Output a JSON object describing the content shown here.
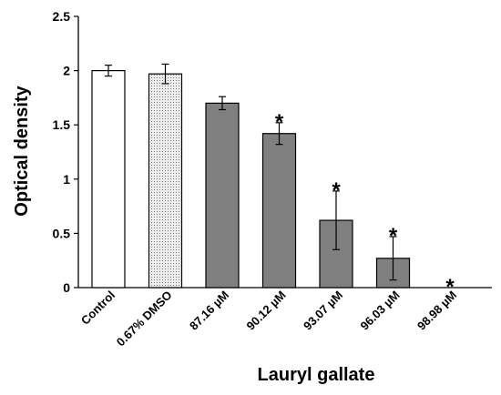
{
  "chart_data": {
    "type": "bar",
    "xlabel": "Lauryl gallate",
    "ylabel": "Optical density",
    "ylim": [
      0,
      2.5
    ],
    "yticks": [
      0,
      0.5,
      1,
      1.5,
      2,
      2.5
    ],
    "ytick_labels": [
      "0",
      "0.5",
      "1",
      "1.5",
      "2",
      "2.5"
    ],
    "grid": false,
    "categories": [
      "Control",
      "0.67% DMSO",
      "87.16 µM",
      "90.12 µM",
      "93.07 µM",
      "96.03 µM",
      "98.98 µM"
    ],
    "values": [
      2.0,
      1.97,
      1.7,
      1.42,
      0.62,
      0.27,
      0.0
    ],
    "errors": [
      0.05,
      0.09,
      0.06,
      0.1,
      0.27,
      0.2,
      0.0
    ],
    "significance": [
      "",
      "",
      "",
      "*",
      "*",
      "*",
      "*"
    ],
    "bar_styles": [
      "white",
      "dotted",
      "gray",
      "gray",
      "gray",
      "gray",
      "gray"
    ],
    "colors": {
      "gray_fill": "#808080",
      "outline": "#000000",
      "dotted_bg": "#ececec",
      "dotted_dot": "#777777"
    }
  }
}
